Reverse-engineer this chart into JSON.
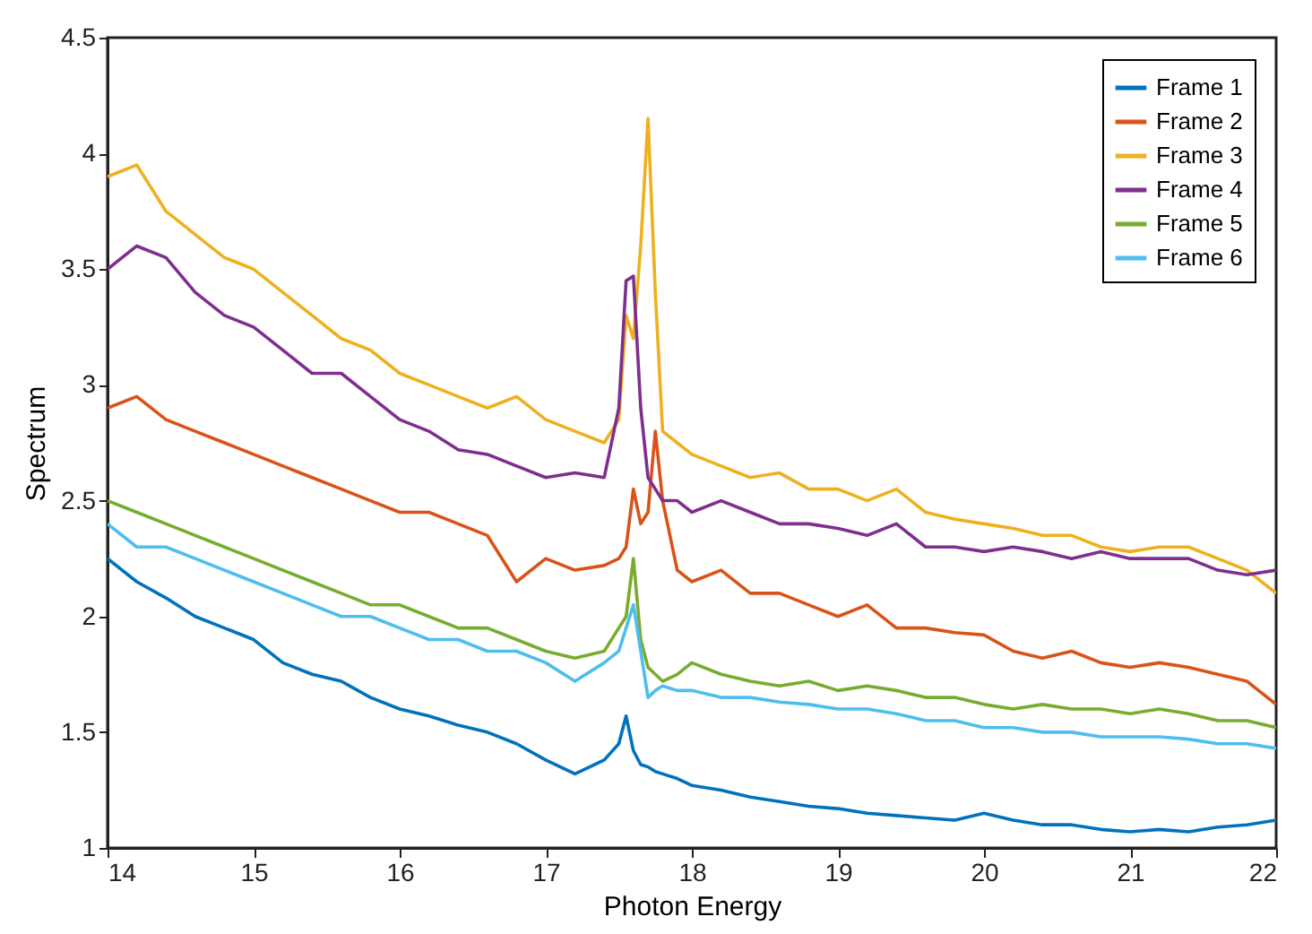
{
  "chart_data": {
    "type": "line",
    "xlabel": "Photon Energy",
    "ylabel": "Spectrum",
    "x": [
      14,
      14.2,
      14.4,
      14.6,
      14.8,
      15,
      15.2,
      15.4,
      15.6,
      15.8,
      16,
      16.2,
      16.4,
      16.6,
      16.8,
      17,
      17.2,
      17.4,
      17.5,
      17.55,
      17.6,
      17.65,
      17.7,
      17.75,
      17.8,
      17.9,
      18,
      18.2,
      18.4,
      18.6,
      18.8,
      19,
      19.2,
      19.4,
      19.6,
      19.8,
      20,
      20.2,
      20.4,
      20.6,
      20.8,
      21,
      21.2,
      21.4,
      21.6,
      21.8,
      22
    ],
    "series": [
      {
        "name": "Frame 1",
        "color": "#0072bd",
        "values": [
          2.25,
          2.15,
          2.08,
          2.0,
          1.95,
          1.9,
          1.8,
          1.75,
          1.72,
          1.65,
          1.6,
          1.57,
          1.53,
          1.5,
          1.45,
          1.38,
          1.32,
          1.38,
          1.45,
          1.57,
          1.42,
          1.36,
          1.35,
          1.33,
          1.32,
          1.3,
          1.27,
          1.25,
          1.22,
          1.2,
          1.18,
          1.17,
          1.15,
          1.14,
          1.13,
          1.12,
          1.15,
          1.12,
          1.1,
          1.1,
          1.08,
          1.07,
          1.08,
          1.07,
          1.09,
          1.1,
          1.12
        ]
      },
      {
        "name": "Frame 2",
        "color": "#d95319",
        "values": [
          2.9,
          2.95,
          2.85,
          2.8,
          2.75,
          2.7,
          2.65,
          2.6,
          2.55,
          2.5,
          2.45,
          2.45,
          2.4,
          2.35,
          2.15,
          2.25,
          2.2,
          2.22,
          2.25,
          2.3,
          2.55,
          2.4,
          2.45,
          2.8,
          2.5,
          2.2,
          2.15,
          2.2,
          2.1,
          2.1,
          2.05,
          2.0,
          2.05,
          1.95,
          1.95,
          1.93,
          1.92,
          1.85,
          1.82,
          1.85,
          1.8,
          1.78,
          1.8,
          1.78,
          1.75,
          1.72,
          1.62
        ]
      },
      {
        "name": "Frame 3",
        "color": "#edb120",
        "values": [
          3.9,
          3.95,
          3.75,
          3.65,
          3.55,
          3.5,
          3.4,
          3.3,
          3.2,
          3.15,
          3.05,
          3.0,
          2.95,
          2.9,
          2.95,
          2.85,
          2.8,
          2.75,
          2.85,
          3.3,
          3.2,
          3.6,
          4.15,
          3.4,
          2.8,
          2.75,
          2.7,
          2.65,
          2.6,
          2.62,
          2.55,
          2.55,
          2.5,
          2.55,
          2.45,
          2.42,
          2.4,
          2.38,
          2.35,
          2.35,
          2.3,
          2.28,
          2.3,
          2.3,
          2.25,
          2.2,
          2.1
        ]
      },
      {
        "name": "Frame 4",
        "color": "#7e2f8e",
        "values": [
          3.5,
          3.6,
          3.55,
          3.4,
          3.3,
          3.25,
          3.15,
          3.05,
          3.05,
          2.95,
          2.85,
          2.8,
          2.72,
          2.7,
          2.65,
          2.6,
          2.62,
          2.6,
          2.9,
          3.45,
          3.47,
          2.9,
          2.6,
          2.55,
          2.5,
          2.5,
          2.45,
          2.5,
          2.45,
          2.4,
          2.4,
          2.38,
          2.35,
          2.4,
          2.3,
          2.3,
          2.28,
          2.3,
          2.28,
          2.25,
          2.28,
          2.25,
          2.25,
          2.25,
          2.2,
          2.18,
          2.2
        ]
      },
      {
        "name": "Frame 5",
        "color": "#77ac30",
        "values": [
          2.5,
          2.45,
          2.4,
          2.35,
          2.3,
          2.25,
          2.2,
          2.15,
          2.1,
          2.05,
          2.05,
          2.0,
          1.95,
          1.95,
          1.9,
          1.85,
          1.82,
          1.85,
          1.95,
          2.0,
          2.25,
          1.9,
          1.78,
          1.75,
          1.72,
          1.75,
          1.8,
          1.75,
          1.72,
          1.7,
          1.72,
          1.68,
          1.7,
          1.68,
          1.65,
          1.65,
          1.62,
          1.6,
          1.62,
          1.6,
          1.6,
          1.58,
          1.6,
          1.58,
          1.55,
          1.55,
          1.52
        ]
      },
      {
        "name": "Frame 6",
        "color": "#4dbeee",
        "values": [
          2.4,
          2.3,
          2.3,
          2.25,
          2.2,
          2.15,
          2.1,
          2.05,
          2.0,
          2.0,
          1.95,
          1.9,
          1.9,
          1.85,
          1.85,
          1.8,
          1.72,
          1.8,
          1.85,
          1.95,
          2.05,
          1.85,
          1.65,
          1.68,
          1.7,
          1.68,
          1.68,
          1.65,
          1.65,
          1.63,
          1.62,
          1.6,
          1.6,
          1.58,
          1.55,
          1.55,
          1.52,
          1.52,
          1.5,
          1.5,
          1.48,
          1.48,
          1.48,
          1.47,
          1.45,
          1.45,
          1.43
        ]
      }
    ],
    "xlim": [
      14,
      22
    ],
    "xticks": [
      14,
      15,
      16,
      17,
      18,
      19,
      20,
      21,
      22
    ],
    "ylim": [
      1,
      4.5
    ],
    "yticks": [
      1,
      1.5,
      2,
      2.5,
      3,
      3.5,
      4,
      4.5
    ],
    "legend": "top right"
  }
}
